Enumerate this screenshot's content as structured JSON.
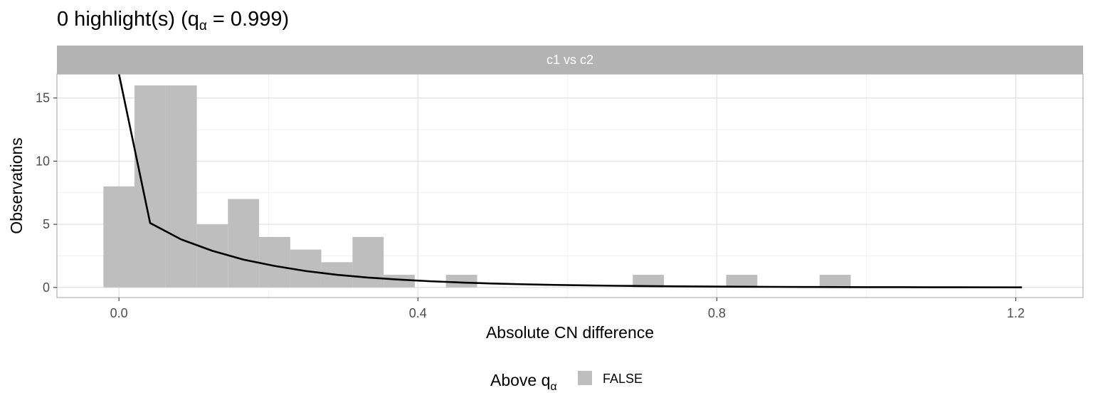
{
  "chart_data": {
    "type": "bar",
    "title": {
      "main": "0 highlight(s) (q",
      "subscript": "α",
      "rest": " = 0.999)"
    },
    "facet_label": "c1 vs c2",
    "xlabel": "Absolute CN difference",
    "ylabel": "Observations",
    "xlim": [
      -0.083,
      1.29
    ],
    "ylim": [
      -0.8,
      16.9
    ],
    "x_ticks": [
      0.0,
      0.4,
      0.8,
      1.2
    ],
    "x_tick_labels": [
      "0.0",
      "0.4",
      "0.8",
      "1.2"
    ],
    "y_ticks": [
      0,
      5,
      10,
      15
    ],
    "y_tick_labels": [
      "0",
      "5",
      "10",
      "15"
    ],
    "grid": true,
    "bin_width": 0.0417,
    "bins": [
      {
        "x_start": -0.0208,
        "x_end": 0.0208,
        "count": 8
      },
      {
        "x_start": 0.0208,
        "x_end": 0.0625,
        "count": 16
      },
      {
        "x_start": 0.0625,
        "x_end": 0.1042,
        "count": 16
      },
      {
        "x_start": 0.1042,
        "x_end": 0.1458,
        "count": 5
      },
      {
        "x_start": 0.1458,
        "x_end": 0.1875,
        "count": 7
      },
      {
        "x_start": 0.1875,
        "x_end": 0.2292,
        "count": 4
      },
      {
        "x_start": 0.2292,
        "x_end": 0.2708,
        "count": 3
      },
      {
        "x_start": 0.2708,
        "x_end": 0.3125,
        "count": 2
      },
      {
        "x_start": 0.3125,
        "x_end": 0.3542,
        "count": 4
      },
      {
        "x_start": 0.3542,
        "x_end": 0.3958,
        "count": 1
      },
      {
        "x_start": 0.4375,
        "x_end": 0.4792,
        "count": 1
      },
      {
        "x_start": 0.6875,
        "x_end": 0.7292,
        "count": 1
      },
      {
        "x_start": 0.8125,
        "x_end": 0.8542,
        "count": 1
      },
      {
        "x_start": 0.9375,
        "x_end": 0.9792,
        "count": 1
      }
    ],
    "series": [
      {
        "type": "line",
        "color": "#000000",
        "points": [
          [
            0.0,
            16.9
          ],
          [
            0.0417,
            5.1
          ],
          [
            0.0833,
            3.8
          ],
          [
            0.125,
            2.9
          ],
          [
            0.1667,
            2.2
          ],
          [
            0.2083,
            1.7
          ],
          [
            0.25,
            1.3
          ],
          [
            0.2917,
            1.0
          ],
          [
            0.3333,
            0.78
          ],
          [
            0.375,
            0.62
          ],
          [
            0.4167,
            0.49
          ],
          [
            0.4583,
            0.39
          ],
          [
            0.5,
            0.31
          ],
          [
            0.5417,
            0.25
          ],
          [
            0.5833,
            0.2
          ],
          [
            0.625,
            0.16
          ],
          [
            0.6667,
            0.13
          ],
          [
            0.7083,
            0.105
          ],
          [
            0.75,
            0.085
          ],
          [
            0.7917,
            0.07
          ],
          [
            0.8333,
            0.055
          ],
          [
            0.875,
            0.045
          ],
          [
            0.9167,
            0.036
          ],
          [
            0.9583,
            0.029
          ],
          [
            1.0,
            0.023
          ],
          [
            1.0417,
            0.019
          ],
          [
            1.0833,
            0.015
          ],
          [
            1.125,
            0.012
          ],
          [
            1.1667,
            0.01
          ],
          [
            1.2083,
            0.008
          ]
        ]
      }
    ],
    "legend": {
      "position": "bottom",
      "title_main": "Above q",
      "title_subscript": "α",
      "entries": [
        {
          "label": "FALSE",
          "color": "#bebebe"
        }
      ]
    },
    "colors": {
      "bar_fill": "#bebebe",
      "strip_fill": "#b3b3b3",
      "grid_major": "#e3e3e3",
      "grid_minor": "#f0f0f0",
      "panel_border": "#b3b3b3",
      "line": "#000000"
    }
  }
}
